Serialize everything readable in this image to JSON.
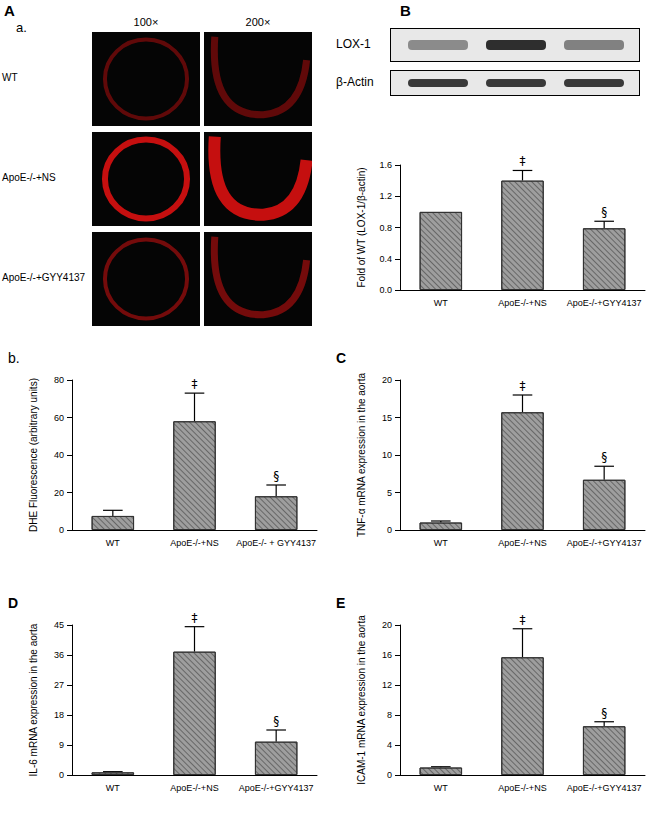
{
  "figure": {
    "micrographs": {
      "panel": "A",
      "subpanel": "a.",
      "columns": [
        "100×",
        "200×"
      ],
      "rows": [
        "WT",
        "ApoE-/-+NS",
        "ApoE-/-+GYY4137"
      ]
    },
    "blot": {
      "panel": "B",
      "rows": [
        "LOX-1",
        "β-Actin"
      ]
    }
  },
  "chart_data": [
    {
      "type": "bar",
      "panel": "",
      "ylabel": "Fold of WT (LOX-1/β-actin)",
      "categories": [
        "WT",
        "ApoE-/-+NS",
        "ApoE-/-+GYY4137"
      ],
      "values": [
        1.0,
        1.4,
        0.79
      ],
      "errors": [
        0,
        0.13,
        0.09
      ],
      "annotations": [
        null,
        "‡",
        "§"
      ],
      "color": "#9e9e9e",
      "ylim": [
        0,
        1.6
      ],
      "yticks": [
        {
          "value": 0,
          "label": "0.0"
        },
        {
          "value": 0.4,
          "label": "0.4"
        },
        {
          "value": 0.8,
          "label": "0.8"
        },
        {
          "value": 1.2,
          "label": "1.2"
        },
        {
          "value": 1.6,
          "label": "1.6"
        }
      ],
      "grid": false
    },
    {
      "type": "bar",
      "panel": "b.",
      "ylabel": "DHE Fluorescence (arbitrary units)",
      "categories": [
        "WT",
        "ApoE-/-+NS",
        "ApoE-/- + GYY4137"
      ],
      "values": [
        7.5,
        58,
        18
      ],
      "errors": [
        3,
        15,
        6
      ],
      "annotations": [
        null,
        "‡",
        "§"
      ],
      "color": "#9e9e9e",
      "ylim": [
        0,
        80
      ],
      "yticks": [
        0,
        20,
        40,
        60,
        80
      ],
      "grid": false
    },
    {
      "type": "bar",
      "panel": "C",
      "ylabel": "TNF-α mRNA expression in the aorta",
      "categories": [
        "WT",
        "ApoE-/-+NS",
        "ApoE-/-+GYY4137"
      ],
      "values": [
        1.0,
        15.7,
        6.7
      ],
      "errors": [
        0.2,
        2.3,
        1.8
      ],
      "annotations": [
        null,
        "‡",
        "§"
      ],
      "color": "#9e9e9e",
      "ylim": [
        0,
        20
      ],
      "yticks": [
        0,
        5,
        10,
        15,
        20
      ],
      "grid": false
    },
    {
      "type": "bar",
      "panel": "D",
      "ylabel": "IL-6 mRNA expression in the aorta",
      "categories": [
        "WT",
        "ApoE-/-+NS",
        "ApoE-/-+GYY4137"
      ],
      "values": [
        0.8,
        37,
        10
      ],
      "errors": [
        0.2,
        7.5,
        3.5
      ],
      "annotations": [
        null,
        "‡",
        "§"
      ],
      "color": "#9e9e9e",
      "ylim": [
        0,
        45
      ],
      "yticks": [
        0,
        9,
        18,
        27,
        36,
        45
      ],
      "grid": false
    },
    {
      "type": "bar",
      "panel": "E",
      "ylabel": "ICAM-1 mRNA expression in the aorta",
      "categories": [
        "WT",
        "ApoE-/-+NS",
        "ApoE-/-+GYY4137"
      ],
      "values": [
        1.0,
        15.7,
        6.5
      ],
      "errors": [
        0.1,
        3.8,
        0.6
      ],
      "annotations": [
        null,
        "‡",
        "§"
      ],
      "color": "#9e9e9e",
      "ylim": [
        0,
        20
      ],
      "yticks": [
        0,
        4,
        8,
        12,
        16,
        20
      ],
      "grid": false
    }
  ]
}
